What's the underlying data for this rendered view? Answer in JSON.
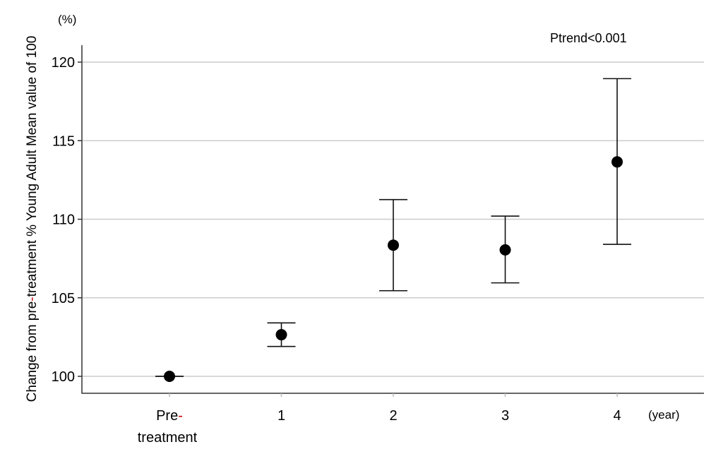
{
  "chart_data": {
    "type": "scatter",
    "title": "",
    "annotation": "Ptrend<0.001",
    "ylabel_parts": [
      "Change from pre",
      "-",
      "treatment % Young Adult Mean value of 100"
    ],
    "yunit": "(%)",
    "xunit": "(year)",
    "ylim": [
      98.9,
      121
    ],
    "yticks": [
      100,
      105,
      110,
      115,
      120
    ],
    "grid": true,
    "categories": [
      {
        "line1": "Pre",
        "dash": "-",
        "line2": "treatment"
      },
      {
        "line1": "1"
      },
      {
        "line1": "2"
      },
      {
        "line1": "3"
      },
      {
        "line1": "4"
      }
    ],
    "points": [
      {
        "mean": 100.0,
        "lower": 100.0,
        "upper": 100.0
      },
      {
        "mean": 102.65,
        "lower": 101.9,
        "upper": 103.4
      },
      {
        "mean": 108.35,
        "lower": 105.45,
        "upper": 111.25
      },
      {
        "mean": 108.05,
        "lower": 105.95,
        "upper": 110.2
      },
      {
        "mean": 113.65,
        "lower": 108.4,
        "upper": 118.95
      }
    ],
    "colors": {
      "marker": "#000000",
      "accent_dash": "#cc0000",
      "grid": "#cccccc"
    }
  }
}
